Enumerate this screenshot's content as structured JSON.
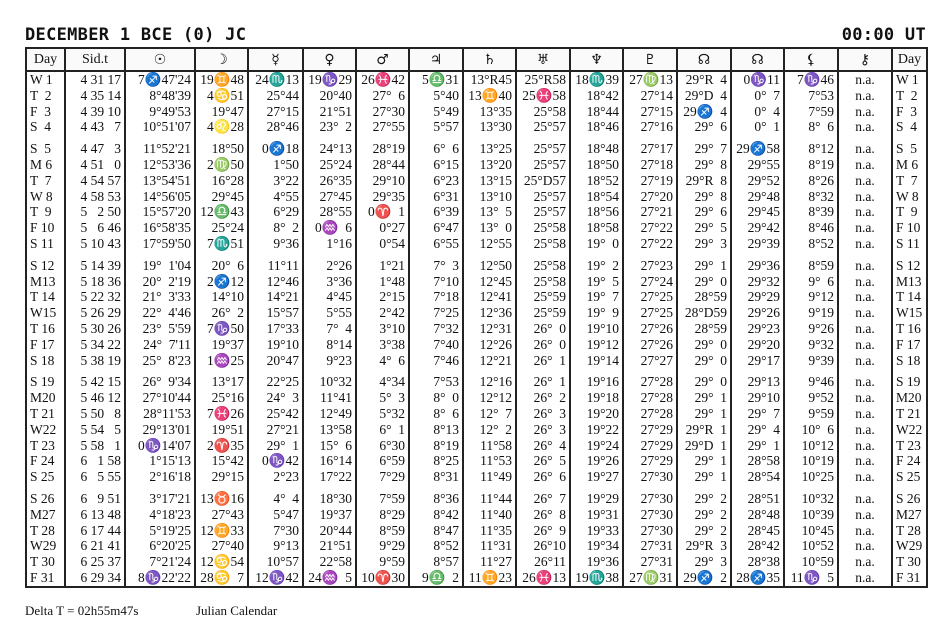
{
  "title": "DECEMBER 1 BCE (0) JC",
  "time": "00:00 UT",
  "footer": {
    "delta_t": "Delta T = 02h55m47s",
    "calendar": "Julian Calendar"
  },
  "table": {
    "headers": [
      {
        "label": "Day",
        "icon": "day"
      },
      {
        "label": "Sid.t",
        "icon": "sidereal-time"
      },
      {
        "label": "☉",
        "icon": "sun-icon"
      },
      {
        "label": "☽",
        "icon": "moon-icon"
      },
      {
        "label": "☿",
        "icon": "mercury-icon"
      },
      {
        "label": "♀",
        "icon": "venus-icon"
      },
      {
        "label": "♂",
        "icon": "mars-icon"
      },
      {
        "label": "♃",
        "icon": "jupiter-icon"
      },
      {
        "label": "♄",
        "icon": "saturn-icon"
      },
      {
        "label": "♅",
        "icon": "uranus-icon"
      },
      {
        "label": "♆",
        "icon": "neptune-icon"
      },
      {
        "label": "♇",
        "icon": "pluto-icon"
      },
      {
        "label": "☊",
        "icon": "true-node-icon"
      },
      {
        "label": "☊",
        "icon": "mean-node-icon"
      },
      {
        "label": "⚸",
        "icon": "lilith-icon"
      },
      {
        "label": "⚷",
        "icon": "chiron-icon"
      },
      {
        "label": "Day",
        "icon": "day"
      }
    ],
    "groups": [
      [
        [
          "W 1",
          "4 31 17",
          "7♐47'24",
          "19♊48",
          "24♏13",
          "19♑29",
          "26♓42",
          "5♎31",
          "13°R45",
          "25°R58",
          "18♏39",
          "27♍13",
          "29°R  4",
          "0♑11",
          "7♑46",
          "n.a."
        ],
        [
          "T  2",
          "4 35 14",
          "8°48'39",
          "4♋51",
          "25°44",
          "20°40",
          "27°  6",
          "5°40",
          "13♊40",
          "25♓58",
          "18°42",
          "27°14",
          "29°D  4",
          "0°  7",
          "7°53",
          "n.a."
        ],
        [
          "F  3",
          "4 39 10",
          "9°49'53",
          "19°47",
          "27°15",
          "21°51",
          "27°30",
          "5°49",
          "13°35",
          "25°58",
          "18°44",
          "27°15",
          "29♐  4",
          "0°  4",
          "7°59",
          "n.a."
        ],
        [
          "S  4",
          "4 43   7",
          "10°51'07",
          "4♌28",
          "28°46",
          "23°  2",
          "27°55",
          "5°57",
          "13°30",
          "25°57",
          "18°46",
          "27°16",
          "29°  6",
          "0°  1",
          "8°  6",
          "n.a."
        ]
      ],
      [
        [
          "S  5",
          "4 47   3",
          "11°52'21",
          "18°50",
          "0♐18",
          "24°13",
          "28°19",
          "6°  6",
          "13°25",
          "25°57",
          "18°48",
          "27°17",
          "29°  7",
          "29♐58",
          "8°12",
          "n.a."
        ],
        [
          "M 6",
          "4 51   0",
          "12°53'36",
          "2♍50",
          "1°50",
          "25°24",
          "28°44",
          "6°15",
          "13°20",
          "25°57",
          "18°50",
          "27°18",
          "29°  8",
          "29°55",
          "8°19",
          "n.a."
        ],
        [
          "T  7",
          "4 54 57",
          "13°54'51",
          "16°28",
          "3°22",
          "26°35",
          "29°10",
          "6°23",
          "13°15",
          "25°D57",
          "18°52",
          "27°19",
          "29°R  8",
          "29°52",
          "8°26",
          "n.a."
        ],
        [
          "W 8",
          "4 58 53",
          "14°56'05",
          "29°45",
          "4°55",
          "27°45",
          "29°35",
          "6°31",
          "13°10",
          "25°57",
          "18°54",
          "27°20",
          "29°  8",
          "29°48",
          "8°32",
          "n.a."
        ],
        [
          "T  9",
          "5   2 50",
          "15°57'20",
          "12♎43",
          "6°29",
          "28°55",
          "0♈  1",
          "6°39",
          "13°  5",
          "25°57",
          "18°56",
          "27°21",
          "29°  6",
          "29°45",
          "8°39",
          "n.a."
        ],
        [
          "F 10",
          "5   6 46",
          "16°58'35",
          "25°24",
          "8°  2",
          "0♒  6",
          "0°27",
          "6°47",
          "13°  0",
          "25°58",
          "18°58",
          "27°22",
          "29°  5",
          "29°42",
          "8°46",
          "n.a."
        ],
        [
          "S 11",
          "5 10 43",
          "17°59'50",
          "7♏51",
          "9°36",
          "1°16",
          "0°54",
          "6°55",
          "12°55",
          "25°58",
          "19°  0",
          "27°22",
          "29°  3",
          "29°39",
          "8°52",
          "n.a."
        ]
      ],
      [
        [
          "S 12",
          "5 14 39",
          "19°  1'04",
          "20°  6",
          "11°11",
          "2°26",
          "1°21",
          "7°  3",
          "12°50",
          "25°58",
          "19°  2",
          "27°23",
          "29°  1",
          "29°36",
          "8°59",
          "n.a."
        ],
        [
          "M13",
          "5 18 36",
          "20°  2'19",
          "2♐12",
          "12°46",
          "3°36",
          "1°48",
          "7°10",
          "12°45",
          "25°58",
          "19°  5",
          "27°24",
          "29°  0",
          "29°32",
          "9°  6",
          "n.a."
        ],
        [
          "T 14",
          "5 22 32",
          "21°  3'33",
          "14°10",
          "14°21",
          "4°45",
          "2°15",
          "7°18",
          "12°41",
          "25°59",
          "19°  7",
          "27°25",
          "28°59",
          "29°29",
          "9°12",
          "n.a."
        ],
        [
          "W15",
          "5 26 29",
          "22°  4'46",
          "26°  2",
          "15°57",
          "5°55",
          "2°42",
          "7°25",
          "12°36",
          "25°59",
          "19°  9",
          "27°25",
          "28°D59",
          "29°26",
          "9°19",
          "n.a."
        ],
        [
          "T 16",
          "5 30 26",
          "23°  5'59",
          "7♑50",
          "17°33",
          "7°  4",
          "3°10",
          "7°32",
          "12°31",
          "26°  0",
          "19°10",
          "27°26",
          "28°59",
          "29°23",
          "9°26",
          "n.a."
        ],
        [
          "F 17",
          "5 34 22",
          "24°  7'11",
          "19°37",
          "19°10",
          "8°14",
          "3°38",
          "7°40",
          "12°26",
          "26°  0",
          "19°12",
          "27°26",
          "29°  0",
          "29°20",
          "9°32",
          "n.a."
        ],
        [
          "S 18",
          "5 38 19",
          "25°  8'23",
          "1♒25",
          "20°47",
          "9°23",
          "4°  6",
          "7°46",
          "12°21",
          "26°  1",
          "19°14",
          "27°27",
          "29°  0",
          "29°17",
          "9°39",
          "n.a."
        ]
      ],
      [
        [
          "S 19",
          "5 42 15",
          "26°  9'34",
          "13°17",
          "22°25",
          "10°32",
          "4°34",
          "7°53",
          "12°16",
          "26°  1",
          "19°16",
          "27°28",
          "29°  0",
          "29°13",
          "9°46",
          "n.a."
        ],
        [
          "M20",
          "5 46 12",
          "27°10'44",
          "25°16",
          "24°  3",
          "11°41",
          "5°  3",
          "8°  0",
          "12°12",
          "26°  2",
          "19°18",
          "27°28",
          "29°  1",
          "29°10",
          "9°52",
          "n.a."
        ],
        [
          "T 21",
          "5 50   8",
          "28°11'53",
          "7♓26",
          "25°42",
          "12°49",
          "5°32",
          "8°  6",
          "12°  7",
          "26°  3",
          "19°20",
          "27°28",
          "29°  1",
          "29°  7",
          "9°59",
          "n.a."
        ],
        [
          "W22",
          "5 54   5",
          "29°13'01",
          "19°51",
          "27°21",
          "13°58",
          "6°  1",
          "8°13",
          "12°  2",
          "26°  3",
          "19°22",
          "27°29",
          "29°R  1",
          "29°  4",
          "10°  6",
          "n.a."
        ],
        [
          "T 23",
          "5 58   1",
          "0♑14'07",
          "2♈35",
          "29°  1",
          "15°  6",
          "6°30",
          "8°19",
          "11°58",
          "26°  4",
          "19°24",
          "27°29",
          "29°D  1",
          "29°  1",
          "10°12",
          "n.a."
        ],
        [
          "F 24",
          "6   1 58",
          "1°15'13",
          "15°42",
          "0♑42",
          "16°14",
          "6°59",
          "8°25",
          "11°53",
          "26°  5",
          "19°26",
          "27°29",
          "29°  1",
          "28°58",
          "10°19",
          "n.a."
        ],
        [
          "S 25",
          "6   5 55",
          "2°16'18",
          "29°15",
          "2°23",
          "17°22",
          "7°29",
          "8°31",
          "11°49",
          "26°  6",
          "19°27",
          "27°30",
          "29°  1",
          "28°54",
          "10°25",
          "n.a."
        ]
      ],
      [
        [
          "S 26",
          "6   9 51",
          "3°17'21",
          "13♉16",
          "4°  4",
          "18°30",
          "7°59",
          "8°36",
          "11°44",
          "26°  7",
          "19°29",
          "27°30",
          "29°  2",
          "28°51",
          "10°32",
          "n.a."
        ],
        [
          "M27",
          "6 13 48",
          "4°18'23",
          "27°43",
          "5°47",
          "19°37",
          "8°29",
          "8°42",
          "11°40",
          "26°  8",
          "19°31",
          "27°30",
          "29°  2",
          "28°48",
          "10°39",
          "n.a."
        ],
        [
          "T 28",
          "6 17 44",
          "5°19'25",
          "12♊33",
          "7°30",
          "20°44",
          "8°59",
          "8°47",
          "11°35",
          "26°  9",
          "19°33",
          "27°30",
          "29°  2",
          "28°45",
          "10°45",
          "n.a."
        ],
        [
          "W29",
          "6 21 41",
          "6°20'25",
          "27°40",
          "9°13",
          "21°51",
          "9°29",
          "8°52",
          "11°31",
          "26°10",
          "19°34",
          "27°31",
          "29°R  3",
          "28°42",
          "10°52",
          "n.a."
        ],
        [
          "T 30",
          "6 25 37",
          "7°21'24",
          "12♋54",
          "10°57",
          "22°58",
          "9°59",
          "8°57",
          "11°27",
          "26°11",
          "19°36",
          "27°31",
          "29°  3",
          "28°38",
          "10°59",
          "n.a."
        ],
        [
          "F 31",
          "6 29 34",
          "8♑22'22",
          "28♋  7",
          "12♑42",
          "24♒  5",
          "10♈30",
          "9♎  2",
          "11♊23",
          "26♓13",
          "19♏38",
          "27♍31",
          "29♐  2",
          "28♐35",
          "11♑  5",
          "n.a."
        ]
      ]
    ]
  }
}
